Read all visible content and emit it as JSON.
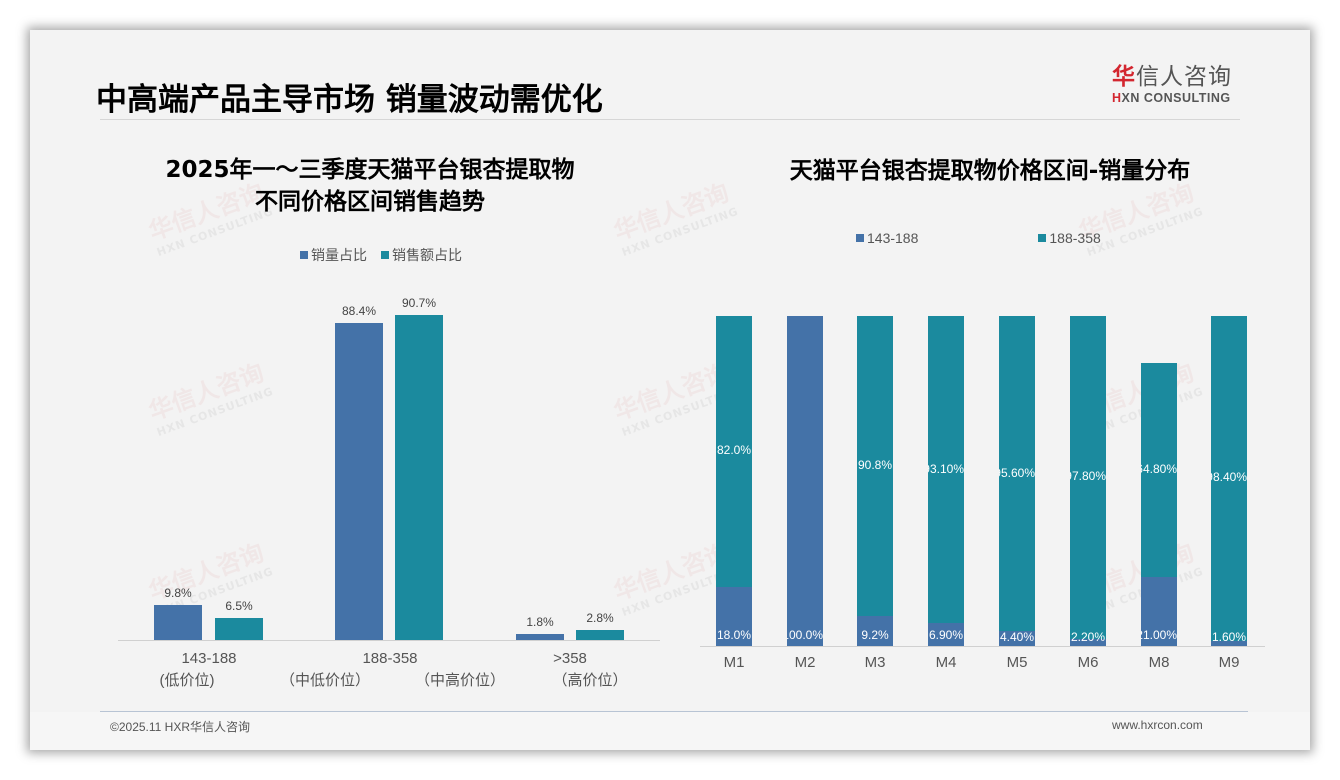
{
  "header": {
    "title": "中高端产品主导市场 销量波动需优化",
    "logo_cn_accent": "华",
    "logo_cn_rest": "信人咨询",
    "logo_en_accent": "H",
    "logo_en_rest": "XN CONSULTING"
  },
  "watermark": {
    "cn": "华信人咨询",
    "en": "HXN CONSULTING"
  },
  "left_chart": {
    "title_line1": "2025年一～三季度天猫平台银杏提取物",
    "title_line2": "不同价格区间销售趋势",
    "legend": [
      {
        "label": "销量占比",
        "color": "#4472a8"
      },
      {
        "label": "销售额占比",
        "color": "#1b8a9e"
      }
    ],
    "groups": [
      {
        "label": "143-188",
        "sub": "(低价位)",
        "vol": "9.8%",
        "amt": "6.5%"
      },
      {
        "label": "188-358",
        "sub_left": "（中低价位）",
        "sub_right": "（中高价位）",
        "vol": "88.4%",
        "amt": "90.7%"
      },
      {
        "label": ">358",
        "sub": "（高价位）",
        "vol": "1.8%",
        "amt": "2.8%"
      }
    ]
  },
  "right_chart": {
    "title": "天猫平台银杏提取物价格区间-销量分布",
    "legend": [
      {
        "label": "143-188",
        "color": "#4472a8"
      },
      {
        "label": "188-358",
        "color": "#1b8a9e"
      }
    ],
    "bars": [
      {
        "month": "M1",
        "low_label": "18.0%",
        "high_label": "82.0%"
      },
      {
        "month": "M2",
        "low_label": "100.0%",
        "high_label": ""
      },
      {
        "month": "M3",
        "low_label": "9.2%",
        "high_label": "90.8%"
      },
      {
        "month": "M4",
        "low_label": "6.90%",
        "high_label": "93.10%"
      },
      {
        "month": "M5",
        "low_label": "4.40%",
        "high_label": "95.60%"
      },
      {
        "month": "M6",
        "low_label": "2.20%",
        "high_label": "97.80%"
      },
      {
        "month": "M8",
        "low_label": "21.00%",
        "high_label": "64.80%"
      },
      {
        "month": "M9",
        "low_label": "1.60%",
        "high_label": "98.40%"
      }
    ]
  },
  "footer": {
    "copyright": "©2025.11 HXR华信人咨询",
    "website": "www.hxrcon.com"
  },
  "chart_data": [
    {
      "type": "bar",
      "title": "2025年一～三季度天猫平台银杏提取物不同价格区间销售趋势",
      "categories": [
        "143-188 (低价位)",
        "188-358 (中低价位/中高价位)",
        ">358 (高价位)"
      ],
      "series": [
        {
          "name": "销量占比",
          "values": [
            9.8,
            88.4,
            1.8
          ],
          "color": "#4472a8"
        },
        {
          "name": "销售额占比",
          "values": [
            6.5,
            90.7,
            2.8
          ],
          "color": "#1b8a9e"
        }
      ],
      "xlabel": "",
      "ylabel": "",
      "unit": "%",
      "legend_position": "top",
      "grid": false
    },
    {
      "type": "bar",
      "stacked": true,
      "title": "天猫平台银杏提取物价格区间-销量分布",
      "categories": [
        "M1",
        "M2",
        "M3",
        "M4",
        "M5",
        "M6",
        "M8",
        "M9"
      ],
      "series": [
        {
          "name": "143-188",
          "values": [
            18.0,
            100.0,
            9.2,
            6.9,
            4.4,
            2.2,
            21.0,
            1.6
          ],
          "color": "#4472a8"
        },
        {
          "name": "188-358",
          "values": [
            82.0,
            0,
            90.8,
            93.1,
            95.6,
            97.8,
            64.8,
            98.4
          ],
          "color": "#1b8a9e"
        }
      ],
      "xlabel": "",
      "ylabel": "",
      "unit": "%",
      "legend_position": "top",
      "grid": false
    }
  ]
}
